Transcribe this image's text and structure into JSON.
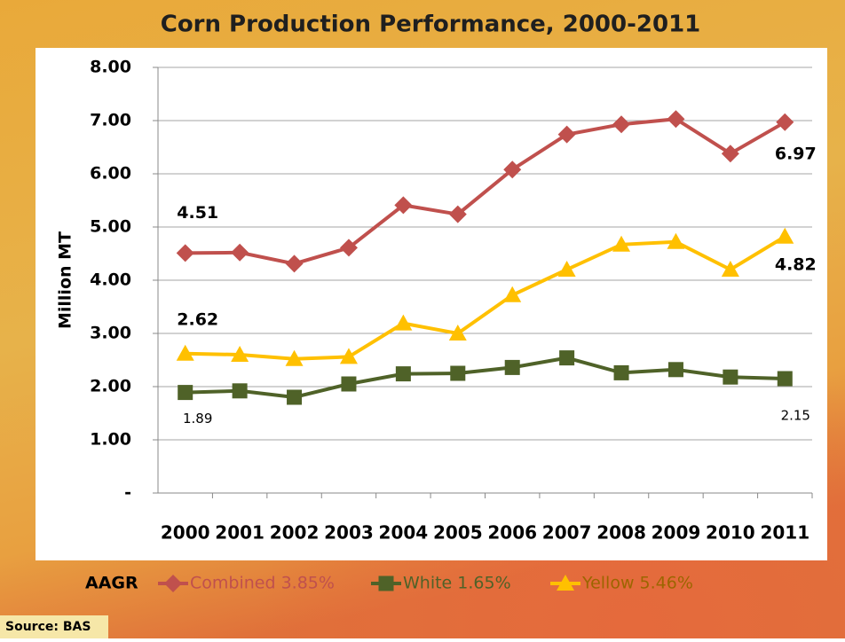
{
  "chart_data": {
    "type": "line",
    "title": "Corn Production Performance, 2000-2011",
    "y_label": "Million MT",
    "source": "Source: BAS",
    "legend_title": "AAGR",
    "categories": [
      "2000",
      "2001",
      "2002",
      "2003",
      "2004",
      "2005",
      "2006",
      "2007",
      "2008",
      "2009",
      "2010",
      "2011"
    ],
    "series": [
      {
        "name": "Combined 3.85%",
        "color": "#c0504d",
        "marker": "diamond",
        "values": [
          4.51,
          4.52,
          4.31,
          4.61,
          5.41,
          5.24,
          6.08,
          6.74,
          6.93,
          7.03,
          6.38,
          6.97
        ],
        "value_labels": [
          "4.51",
          null,
          null,
          null,
          null,
          null,
          null,
          null,
          null,
          null,
          null,
          "6.97"
        ]
      },
      {
        "name": "White 1.65%",
        "color": "#4f6228",
        "marker": "square",
        "values": [
          1.89,
          1.92,
          1.8,
          2.05,
          2.24,
          2.25,
          2.36,
          2.54,
          2.26,
          2.32,
          2.18,
          2.15
        ],
        "value_labels": [
          "1.89",
          null,
          null,
          null,
          null,
          null,
          null,
          null,
          null,
          null,
          null,
          "2.15"
        ]
      },
      {
        "name": "Yellow 5.46%",
        "color": "#ffc000",
        "marker": "triangle",
        "values": [
          2.62,
          2.6,
          2.52,
          2.56,
          3.19,
          3.0,
          3.72,
          4.2,
          4.67,
          4.72,
          4.2,
          4.82
        ],
        "value_labels": [
          "2.62",
          null,
          null,
          null,
          null,
          null,
          null,
          null,
          null,
          null,
          null,
          "4.82"
        ]
      }
    ],
    "ylim": [
      0,
      8
    ],
    "yticks": [
      {
        "value": 0,
        "label": "-"
      },
      {
        "value": 1,
        "label": "1.00"
      },
      {
        "value": 2,
        "label": "2.00"
      },
      {
        "value": 3,
        "label": "3.00"
      },
      {
        "value": 4,
        "label": "4.00"
      },
      {
        "value": 5,
        "label": "5.00"
      },
      {
        "value": 6,
        "label": "6.00"
      },
      {
        "value": 7,
        "label": "7.00"
      },
      {
        "value": 8,
        "label": "8.00"
      }
    ],
    "grid": true,
    "legend": "bottom"
  }
}
